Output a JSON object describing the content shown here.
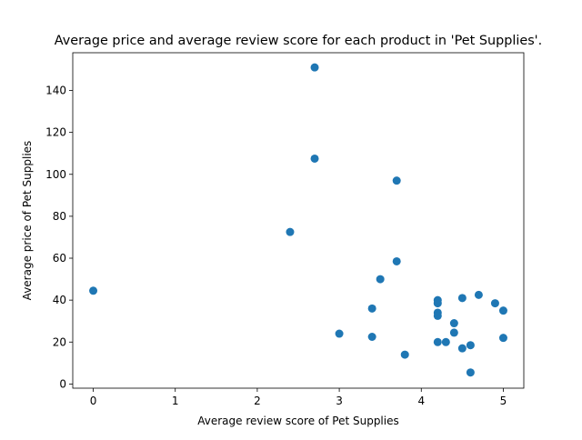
{
  "chart_data": {
    "type": "scatter",
    "title": "Average price and average review score for each product in 'Pet Supplies'.",
    "xlabel": "Average review score of Pet Supplies",
    "ylabel": "Average price of Pet Supplies",
    "xlim": [
      -0.25,
      5.25
    ],
    "ylim": [
      -2,
      158
    ],
    "xticks": [
      0,
      1,
      2,
      3,
      4,
      5
    ],
    "yticks": [
      0,
      20,
      40,
      60,
      80,
      100,
      120,
      140
    ],
    "grid": false,
    "marker_color": "#1f77b4",
    "points": [
      {
        "x": 0.0,
        "y": 44.5
      },
      {
        "x": 2.4,
        "y": 72.5
      },
      {
        "x": 2.7,
        "y": 151.0
      },
      {
        "x": 2.7,
        "y": 107.5
      },
      {
        "x": 3.0,
        "y": 24.0
      },
      {
        "x": 3.4,
        "y": 36.0
      },
      {
        "x": 3.4,
        "y": 22.5
      },
      {
        "x": 3.5,
        "y": 50.0
      },
      {
        "x": 3.7,
        "y": 97.0
      },
      {
        "x": 3.7,
        "y": 58.5
      },
      {
        "x": 3.8,
        "y": 14.0
      },
      {
        "x": 4.2,
        "y": 40.0
      },
      {
        "x": 4.2,
        "y": 38.5
      },
      {
        "x": 4.2,
        "y": 34.0
      },
      {
        "x": 4.2,
        "y": 32.5
      },
      {
        "x": 4.2,
        "y": 20.0
      },
      {
        "x": 4.3,
        "y": 20.0
      },
      {
        "x": 4.4,
        "y": 29.0
      },
      {
        "x": 4.4,
        "y": 24.5
      },
      {
        "x": 4.5,
        "y": 41.0
      },
      {
        "x": 4.5,
        "y": 17.0
      },
      {
        "x": 4.6,
        "y": 18.5
      },
      {
        "x": 4.6,
        "y": 5.5
      },
      {
        "x": 4.7,
        "y": 42.5
      },
      {
        "x": 4.9,
        "y": 38.5
      },
      {
        "x": 5.0,
        "y": 35.0
      },
      {
        "x": 5.0,
        "y": 22.0
      }
    ]
  }
}
